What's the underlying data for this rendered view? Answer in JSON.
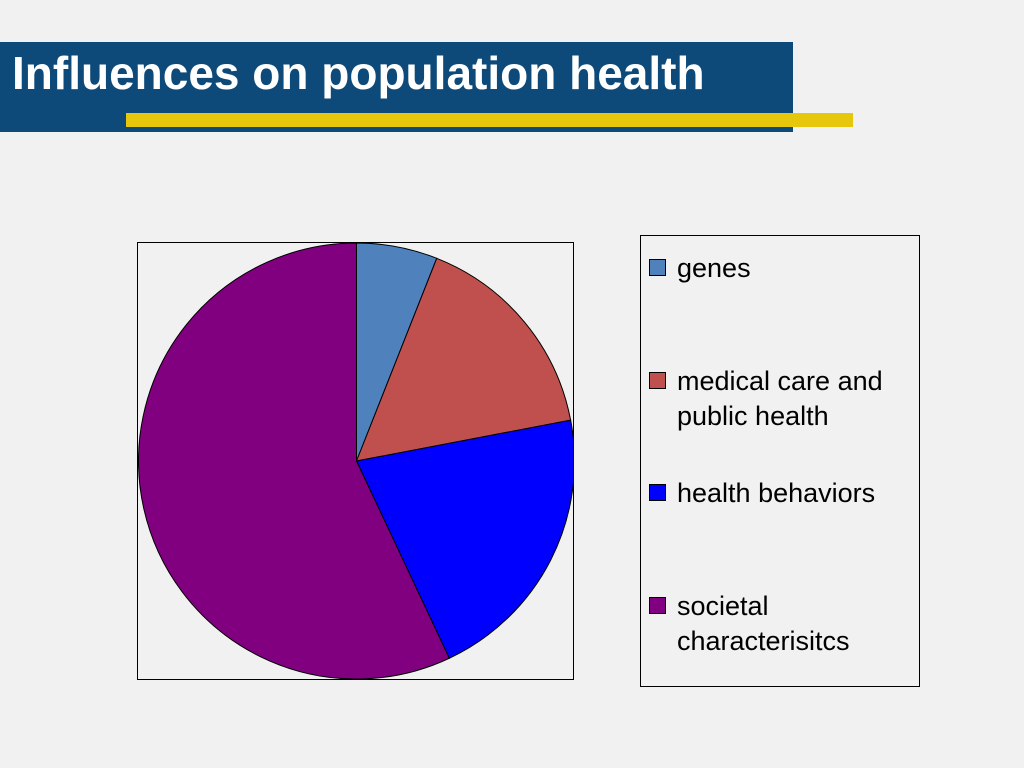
{
  "slide": {
    "title": "Influences on population health"
  },
  "chart_data": {
    "type": "pie",
    "title": "",
    "categories": [
      "genes",
      "medical care and public health",
      "health behaviors",
      "societal characterisitcs"
    ],
    "values": [
      6,
      16,
      21,
      57
    ],
    "colors": [
      "#4f81bd",
      "#c0504d",
      "#0000ff",
      "#800080"
    ],
    "legend": {
      "placement": "right",
      "entries": [
        {
          "label": "genes",
          "color": "#4f81bd"
        },
        {
          "label": "medical care and public health",
          "color": "#c0504d"
        },
        {
          "label": "health behaviors",
          "color": "#0000ff"
        },
        {
          "label": "societal characterisitcs",
          "color": "#800080"
        }
      ]
    }
  }
}
